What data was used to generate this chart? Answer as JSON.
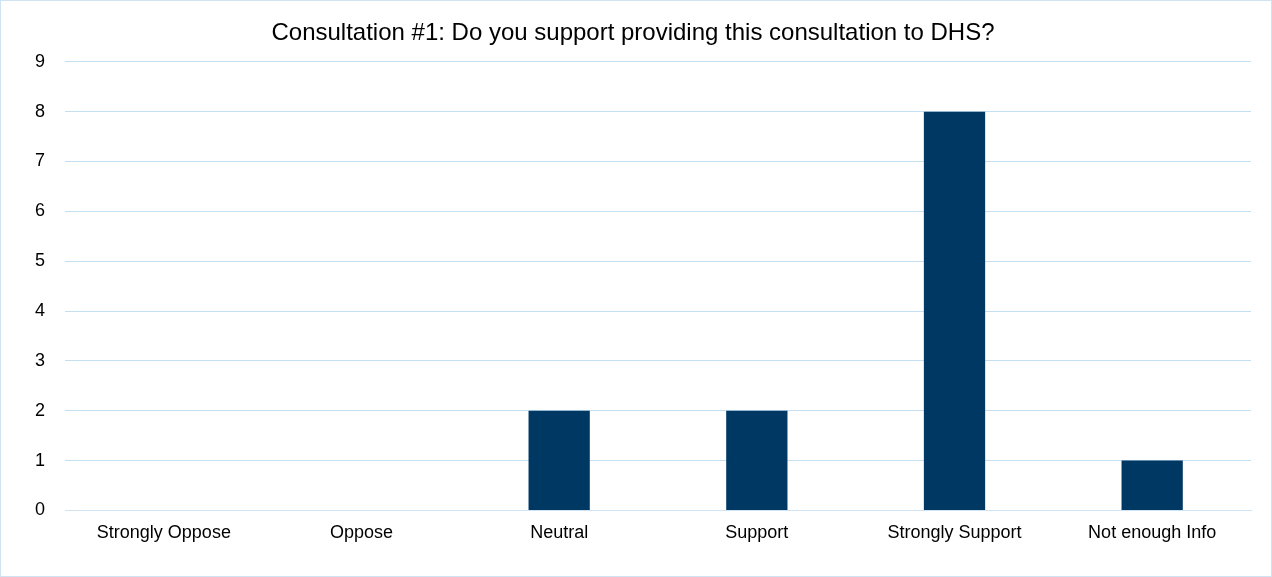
{
  "chart_data": {
    "type": "bar",
    "title": "Consultation #1: Do you support providing this consultation to DHS?",
    "categories": [
      "Strongly Oppose",
      "Oppose",
      "Neutral",
      "Support",
      "Strongly Support",
      "Not enough Info"
    ],
    "values": [
      0,
      0,
      2,
      2,
      8,
      1
    ],
    "color": "#003864",
    "ylim": [
      0,
      9
    ],
    "yticks": [
      0,
      1,
      2,
      3,
      4,
      5,
      6,
      7,
      8,
      9
    ],
    "grid": "y",
    "legend": false
  }
}
